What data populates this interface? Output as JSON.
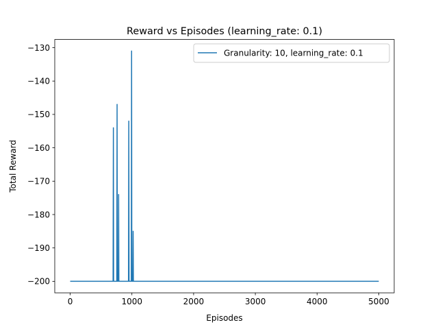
{
  "chart_data": {
    "type": "line",
    "title": "Reward vs Episodes (learning_rate: 0.1)",
    "xlabel": "Episodes",
    "ylabel": "Total Reward",
    "xlim": [
      -250,
      5250
    ],
    "ylim": [
      -203.45,
      -127.55
    ],
    "xticks": [
      0,
      1000,
      2000,
      3000,
      4000,
      5000
    ],
    "yticks": [
      -200,
      -190,
      -180,
      -170,
      -160,
      -150,
      -140,
      -130
    ],
    "grid": false,
    "legend_position": "upper right",
    "series": [
      {
        "name": "Granularity: 10, learning_rate: 0.1",
        "color": "#1f77b4",
        "points": [
          [
            0,
            -200
          ],
          [
            695,
            -200
          ],
          [
            700,
            -154
          ],
          [
            704,
            -200
          ],
          [
            755,
            -200
          ],
          [
            760,
            -147
          ],
          [
            764,
            -200
          ],
          [
            780,
            -200
          ],
          [
            785,
            -174
          ],
          [
            789,
            -200
          ],
          [
            945,
            -200
          ],
          [
            950,
            -152
          ],
          [
            954,
            -200
          ],
          [
            990,
            -200
          ],
          [
            995,
            -131
          ],
          [
            999,
            -200
          ],
          [
            1015,
            -200
          ],
          [
            1020,
            -185
          ],
          [
            1024,
            -200
          ],
          [
            5000,
            -200
          ]
        ]
      }
    ]
  }
}
